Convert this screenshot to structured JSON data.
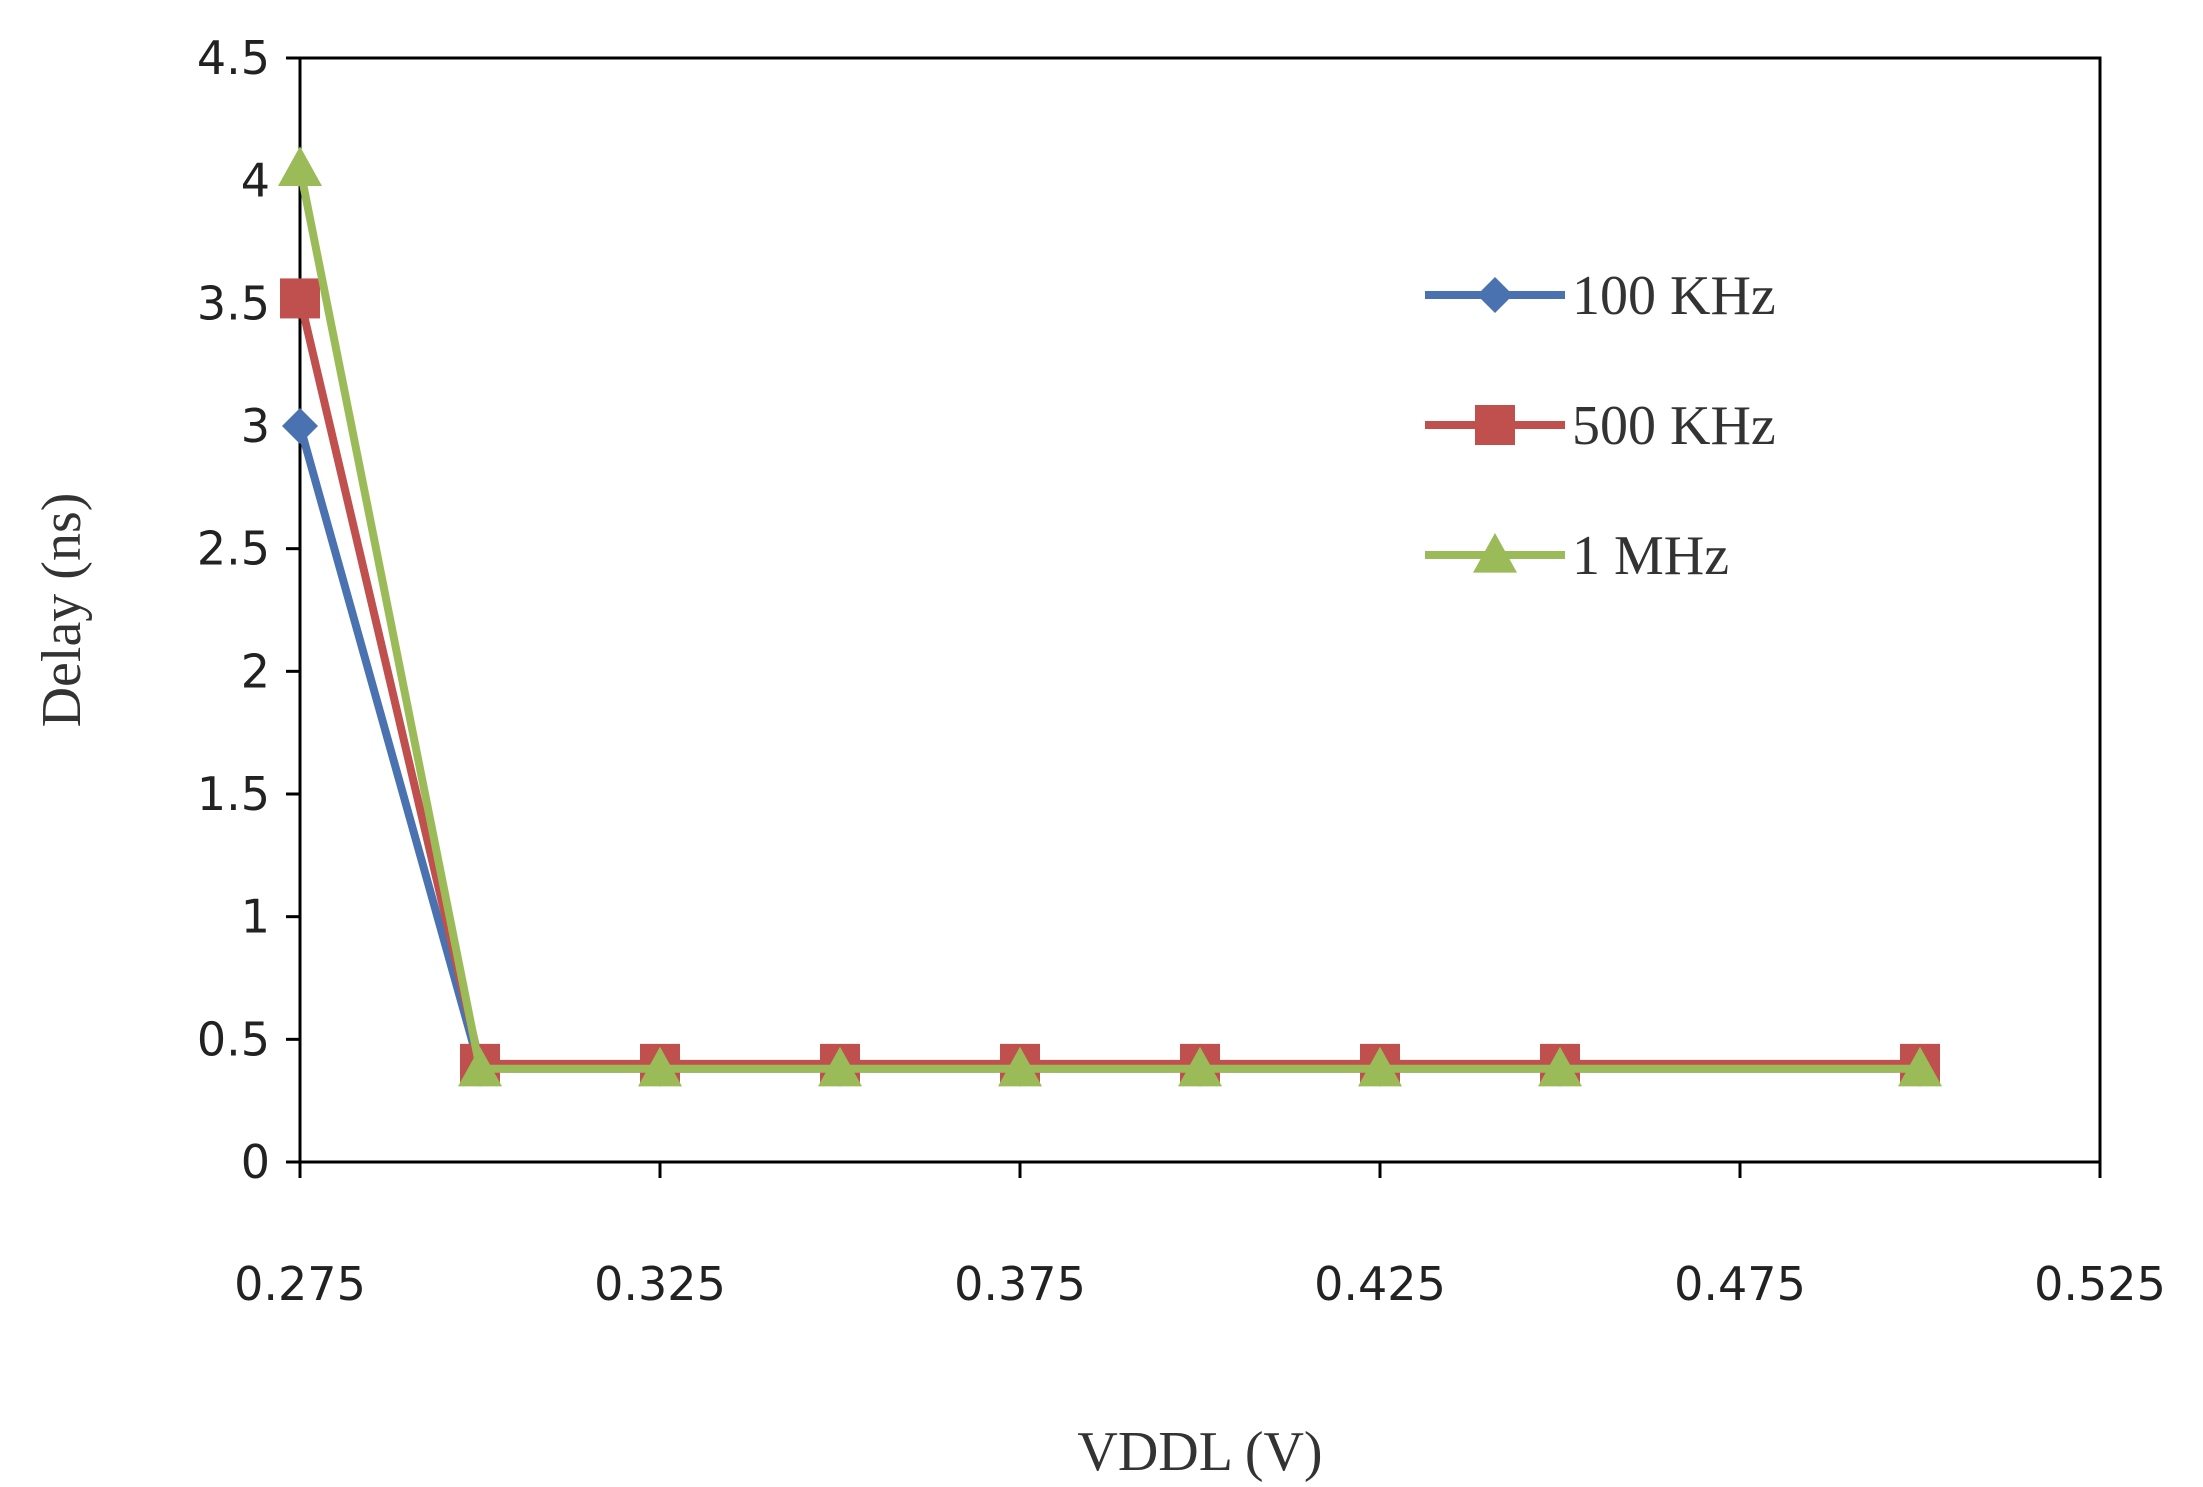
{
  "chart_data": {
    "type": "line",
    "title": "",
    "xlabel": "VDDL (V)",
    "ylabel": "Delay (ns)",
    "xlim": [
      0.275,
      0.525
    ],
    "ylim": [
      0,
      4.5
    ],
    "xticks": [
      "0.275",
      "0.325",
      "0.375",
      "0.425",
      "0.475",
      "0.525"
    ],
    "yticks": [
      "0",
      "0.5",
      "1",
      "1.5",
      "2",
      "2.5",
      "3",
      "3.5",
      "4",
      "4.5"
    ],
    "grid": false,
    "legend_position": "right",
    "x": [
      0.275,
      0.3,
      0.325,
      0.35,
      0.375,
      0.4,
      0.425,
      0.45,
      0.5
    ],
    "series": [
      {
        "name": "100 KHz",
        "color": "#4a72b0",
        "marker": "diamond",
        "values": [
          3.0,
          0.38,
          0.38,
          0.38,
          0.38,
          0.38,
          0.38,
          0.38,
          0.38
        ]
      },
      {
        "name": "500 KHz",
        "color": "#c0504d",
        "marker": "square",
        "values": [
          3.52,
          0.4,
          0.4,
          0.4,
          0.4,
          0.4,
          0.4,
          0.4,
          0.4
        ]
      },
      {
        "name": "1 MHz",
        "color": "#9bbb59",
        "marker": "triangle",
        "values": [
          4.05,
          0.38,
          0.38,
          0.38,
          0.38,
          0.38,
          0.38,
          0.38,
          0.38
        ]
      }
    ]
  }
}
